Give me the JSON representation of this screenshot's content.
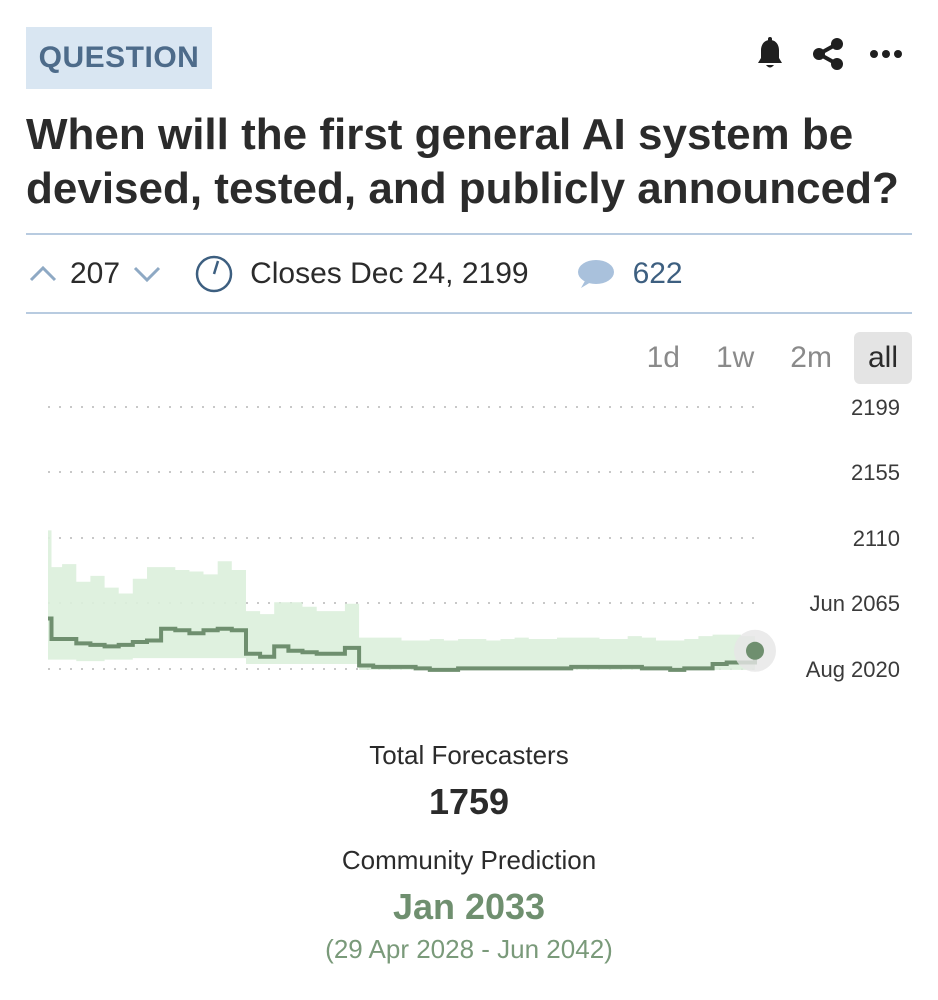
{
  "header": {
    "tag": "QUESTION",
    "icons": [
      "bell-icon",
      "share-icon",
      "more-icon"
    ],
    "title": "When will the first general AI system be devised, tested, and publicly announced?"
  },
  "meta": {
    "votes": "207",
    "closes": "Closes Dec 24, 2199",
    "comments": "622"
  },
  "ranges": {
    "options": [
      "1d",
      "1w",
      "2m",
      "all"
    ],
    "selected": "all"
  },
  "chart_data": {
    "type": "line",
    "y_ticks": [
      "2199",
      "2155",
      "2110",
      "Jun 2065",
      "Aug 2020"
    ],
    "grid": "dotted horizontal",
    "colors": {
      "line": "#6f8f6f",
      "band": "#dcefdc",
      "point": "#6f8f6f"
    },
    "series": [
      {
        "x": [
          0,
          0.005,
          0.02,
          0.04,
          0.06,
          0.08,
          0.1,
          0.12,
          0.14,
          0.16,
          0.18,
          0.2,
          0.22,
          0.24,
          0.26,
          0.28,
          0.3,
          0.32,
          0.34,
          0.36,
          0.38,
          0.4,
          0.42,
          0.44,
          0.46,
          0.48,
          0.5,
          0.52,
          0.54,
          0.56,
          0.58,
          0.6,
          0.62,
          0.64,
          0.66,
          0.68,
          0.7,
          0.72,
          0.74,
          0.76,
          0.78,
          0.8,
          0.82,
          0.84,
          0.86,
          0.88,
          0.9,
          0.92,
          0.94,
          0.96,
          0.98,
          1.0
        ],
        "y": [
          2055,
          2041,
          2041,
          2038,
          2037,
          2036,
          2037,
          2039,
          2040,
          2048,
          2047,
          2045,
          2047,
          2048,
          2047,
          2031,
          2029,
          2036,
          2033,
          2032,
          2031,
          2031,
          2035,
          2023,
          2022,
          2022,
          2022,
          2021,
          2020,
          2020,
          2021,
          2021,
          2021,
          2021,
          2021,
          2021,
          2021,
          2021,
          2022,
          2022,
          2022,
          2022,
          2022,
          2021,
          2021,
          2020,
          2021,
          2021,
          2024,
          2025,
          2025,
          2033
        ],
        "low": [
          2027,
          2027,
          2027,
          2026,
          2026,
          2027,
          2027,
          2028,
          2028,
          2028,
          2028,
          2028,
          2028,
          2028,
          2028,
          2024,
          2024,
          2024,
          2024,
          2024,
          2024,
          2024,
          2024,
          2020,
          2020,
          2020,
          2020,
          2020,
          2020,
          2020,
          2020,
          2020,
          2020,
          2020,
          2020,
          2020,
          2020,
          2020,
          2020,
          2020,
          2020,
          2020,
          2020,
          2020,
          2020,
          2020,
          2020,
          2020,
          2020,
          2020,
          2020,
          2028
        ],
        "high": [
          2115,
          2090,
          2092,
          2080,
          2084,
          2076,
          2072,
          2082,
          2090,
          2090,
          2088,
          2087,
          2085,
          2094,
          2088,
          2060,
          2058,
          2066,
          2066,
          2063,
          2060,
          2060,
          2065,
          2042,
          2042,
          2042,
          2040,
          2040,
          2041,
          2040,
          2041,
          2041,
          2040,
          2041,
          2042,
          2041,
          2041,
          2042,
          2042,
          2042,
          2041,
          2041,
          2043,
          2042,
          2040,
          2040,
          2041,
          2043,
          2044,
          2044,
          2043,
          2042
        ]
      }
    ],
    "y_range": [
      2020.6,
      2199
    ]
  },
  "stats": {
    "forecasters_label": "Total Forecasters",
    "forecasters_value": "1759",
    "prediction_label": "Community Prediction",
    "prediction_value": "Jan 2033",
    "prediction_range": "(29 Apr 2028 - Jun 2042)"
  }
}
